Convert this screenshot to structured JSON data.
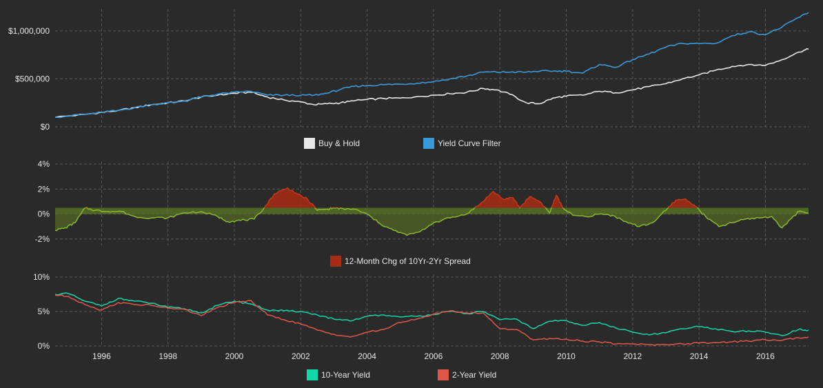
{
  "colors": {
    "background": "#2a2a2a",
    "grid": "#5a5a5a",
    "text": "#e6e6e6",
    "buy_hold": "#e8e8e8",
    "yield_curve_filter": "#3a9ad9",
    "spread_line": "#8ab833",
    "spread_fill_negative": "#4d5f25",
    "spread_fill_positive": "#a82c14",
    "spread_band": "#5b7a26",
    "ten_year": "#13d6a9",
    "two_year": "#e0574a"
  },
  "chart_data": [
    {
      "type": "line",
      "title": "",
      "x_domain": [
        1994.6,
        2017.3
      ],
      "ylim": [
        0,
        1200000
      ],
      "y_ticks": [
        {
          "value": 0,
          "label": "$0"
        },
        {
          "value": 500000,
          "label": "$500,000"
        },
        {
          "value": 1000000,
          "label": "$1,000,000"
        }
      ],
      "legend_position": "bottom-center",
      "series": [
        {
          "name": "Buy & Hold",
          "color_key": "buy_hold",
          "x": [
            1994.6,
            1995.5,
            1996.0,
            1996.5,
            1997.0,
            1997.5,
            1998.0,
            1998.5,
            1999.0,
            1999.5,
            2000.0,
            2000.5,
            2001.0,
            2001.5,
            2002.0,
            2002.4,
            2002.8,
            2003.2,
            2003.6,
            2004.0,
            2004.5,
            2005.0,
            2005.5,
            2006.0,
            2006.5,
            2007.0,
            2007.5,
            2007.9,
            2008.3,
            2008.8,
            2009.2,
            2009.6,
            2010.0,
            2010.5,
            2011.0,
            2011.5,
            2012.0,
            2012.5,
            2013.0,
            2013.5,
            2014.0,
            2014.5,
            2015.0,
            2015.5,
            2016.0,
            2016.5,
            2017.0,
            2017.3
          ],
          "y": [
            100000,
            130000,
            150000,
            170000,
            200000,
            230000,
            250000,
            270000,
            310000,
            330000,
            350000,
            360000,
            310000,
            280000,
            260000,
            230000,
            240000,
            250000,
            270000,
            285000,
            295000,
            300000,
            315000,
            330000,
            345000,
            360000,
            400000,
            385000,
            340000,
            250000,
            240000,
            300000,
            320000,
            330000,
            370000,
            355000,
            385000,
            420000,
            450000,
            500000,
            540000,
            590000,
            630000,
            650000,
            640000,
            700000,
            780000,
            810000
          ]
        },
        {
          "name": "Yield Curve Filter",
          "color_key": "yield_curve_filter",
          "x": [
            1994.6,
            1995.5,
            1996.0,
            1996.5,
            1997.0,
            1997.5,
            1998.0,
            1998.5,
            1999.0,
            1999.5,
            2000.0,
            2000.5,
            2001.0,
            2001.5,
            2002.0,
            2002.4,
            2002.8,
            2003.2,
            2003.6,
            2004.0,
            2004.5,
            2005.0,
            2005.5,
            2006.0,
            2006.5,
            2007.0,
            2007.5,
            2007.9,
            2008.3,
            2008.8,
            2009.2,
            2009.6,
            2010.0,
            2010.5,
            2011.0,
            2011.5,
            2012.0,
            2012.5,
            2013.0,
            2013.5,
            2014.0,
            2014.5,
            2015.0,
            2015.5,
            2016.0,
            2016.5,
            2017.0,
            2017.3
          ],
          "y": [
            100000,
            130000,
            150000,
            170000,
            200000,
            230000,
            250000,
            270000,
            310000,
            340000,
            360000,
            370000,
            330000,
            330000,
            330000,
            330000,
            350000,
            390000,
            420000,
            430000,
            440000,
            445000,
            455000,
            470000,
            500000,
            530000,
            570000,
            570000,
            570000,
            570000,
            580000,
            580000,
            580000,
            560000,
            650000,
            620000,
            700000,
            760000,
            830000,
            870000,
            870000,
            870000,
            950000,
            990000,
            960000,
            1040000,
            1140000,
            1190000
          ]
        }
      ]
    },
    {
      "type": "area",
      "title": "",
      "x_domain": [
        1994.6,
        2017.3
      ],
      "ylim": [
        -2.5,
        4
      ],
      "band_upper": 0.5,
      "y_ticks": [
        {
          "value": -2,
          "label": "-2%"
        },
        {
          "value": 0,
          "label": "0%"
        },
        {
          "value": 2,
          "label": "2%"
        },
        {
          "value": 4,
          "label": "4%"
        }
      ],
      "legend_position": "bottom-center",
      "series": [
        {
          "name": "12-Month Chg of 10Yr-2Yr Spread",
          "color_key": "spread_line",
          "legend_color_key": "spread_fill_positive",
          "x": [
            1994.6,
            1994.9,
            1995.2,
            1995.5,
            1995.8,
            1996.2,
            1996.6,
            1997.0,
            1997.5,
            1998.0,
            1998.5,
            1999.0,
            1999.5,
            1999.8,
            2000.2,
            2000.6,
            2000.9,
            2001.2,
            2001.6,
            2001.9,
            2002.2,
            2002.5,
            2002.8,
            2003.0,
            2003.3,
            2003.6,
            2004.0,
            2004.4,
            2004.8,
            2005.2,
            2005.6,
            2006.0,
            2006.5,
            2007.0,
            2007.4,
            2007.8,
            2008.1,
            2008.4,
            2008.6,
            2008.9,
            2009.2,
            2009.5,
            2009.7,
            2009.9,
            2010.2,
            2010.6,
            2011.0,
            2011.4,
            2011.8,
            2012.2,
            2012.6,
            2013.0,
            2013.3,
            2013.6,
            2013.9,
            2014.2,
            2014.6,
            2015.0,
            2015.4,
            2015.8,
            2016.2,
            2016.5,
            2016.8,
            2017.0,
            2017.3
          ],
          "y": [
            -1.3,
            -1.1,
            -0.7,
            0.5,
            0.3,
            0.2,
            0.2,
            -0.2,
            -0.3,
            -0.3,
            0.1,
            0.2,
            -0.2,
            -0.6,
            -0.5,
            -0.4,
            0.5,
            1.6,
            2.1,
            1.6,
            1.2,
            0.3,
            0.4,
            0.5,
            0.4,
            0.4,
            0.0,
            -0.8,
            -1.3,
            -1.7,
            -1.4,
            -0.7,
            -0.3,
            0.0,
            0.8,
            1.8,
            1.2,
            1.3,
            0.5,
            1.4,
            1.0,
            0.1,
            1.5,
            0.5,
            -0.1,
            -0.2,
            0.0,
            -0.1,
            -0.6,
            -1.0,
            -0.7,
            0.3,
            1.1,
            1.2,
            0.6,
            -0.2,
            -1.0,
            -0.7,
            -0.4,
            -0.3,
            -0.2,
            -1.1,
            -0.3,
            0.2,
            0.1
          ]
        }
      ]
    },
    {
      "type": "line",
      "title": "",
      "x_domain": [
        1994.6,
        2017.3
      ],
      "ylim": [
        0,
        10
      ],
      "x_ticks": [
        1996,
        1998,
        2000,
        2002,
        2004,
        2006,
        2008,
        2010,
        2012,
        2014,
        2016
      ],
      "y_ticks": [
        {
          "value": 0,
          "label": "0%"
        },
        {
          "value": 5,
          "label": "5%"
        },
        {
          "value": 10,
          "label": "10%"
        }
      ],
      "legend_position": "bottom-center",
      "series": [
        {
          "name": "10-Year Yield",
          "color_key": "ten_year",
          "x": [
            1994.6,
            1995.0,
            1995.5,
            1996.0,
            1996.5,
            1997.0,
            1997.5,
            1998.0,
            1998.5,
            1999.0,
            1999.5,
            2000.0,
            2000.5,
            2001.0,
            2001.5,
            2002.0,
            2002.5,
            2003.0,
            2003.5,
            2004.0,
            2004.5,
            2005.0,
            2005.5,
            2006.0,
            2006.5,
            2007.0,
            2007.5,
            2008.0,
            2008.5,
            2009.0,
            2009.5,
            2010.0,
            2010.5,
            2011.0,
            2011.5,
            2012.0,
            2012.5,
            2013.0,
            2013.5,
            2014.0,
            2014.5,
            2015.0,
            2015.5,
            2016.0,
            2016.5,
            2017.0,
            2017.3
          ],
          "y": [
            7.5,
            7.6,
            6.5,
            5.8,
            6.9,
            6.5,
            6.2,
            5.6,
            5.4,
            4.8,
            5.9,
            6.5,
            6.1,
            5.2,
            5.1,
            5.0,
            4.5,
            3.9,
            3.6,
            4.3,
            4.5,
            4.2,
            4.3,
            4.6,
            5.0,
            4.7,
            5.0,
            3.8,
            3.9,
            2.5,
            3.6,
            3.7,
            3.0,
            3.4,
            2.6,
            2.0,
            1.6,
            1.9,
            2.5,
            2.8,
            2.5,
            2.1,
            2.2,
            2.0,
            1.5,
            2.4,
            2.3
          ]
        },
        {
          "name": "2-Year Yield",
          "color_key": "two_year",
          "x": [
            1994.6,
            1995.0,
            1995.5,
            1996.0,
            1996.5,
            1997.0,
            1997.5,
            1998.0,
            1998.5,
            1999.0,
            1999.5,
            2000.0,
            2000.5,
            2001.0,
            2001.5,
            2002.0,
            2002.5,
            2003.0,
            2003.5,
            2004.0,
            2004.5,
            2005.0,
            2005.5,
            2006.0,
            2006.5,
            2007.0,
            2007.5,
            2008.0,
            2008.5,
            2009.0,
            2009.5,
            2010.0,
            2010.5,
            2011.0,
            2011.5,
            2012.0,
            2012.5,
            2013.0,
            2013.5,
            2014.0,
            2014.5,
            2015.0,
            2015.5,
            2016.0,
            2016.5,
            2017.0,
            2017.3
          ],
          "y": [
            7.4,
            7.2,
            6.0,
            5.2,
            6.3,
            6.0,
            5.9,
            5.5,
            5.3,
            4.4,
            5.6,
            6.3,
            6.6,
            4.5,
            3.8,
            3.2,
            2.3,
            1.7,
            1.3,
            2.0,
            2.4,
            3.4,
            3.9,
            4.6,
            5.1,
            4.8,
            4.8,
            2.5,
            2.4,
            0.9,
            1.1,
            1.0,
            0.7,
            0.6,
            0.3,
            0.3,
            0.2,
            0.2,
            0.3,
            0.4,
            0.5,
            0.6,
            0.7,
            0.9,
            0.8,
            1.2,
            1.3
          ]
        }
      ]
    }
  ]
}
